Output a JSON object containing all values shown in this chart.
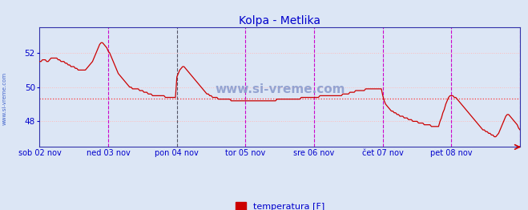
{
  "title": "Kolpa - Metlika",
  "title_color": "#0000cc",
  "bg_color": "#dce6f5",
  "plot_bg_color": "#dce6f5",
  "line_color": "#cc0000",
  "grid_color_h": "#ffbbbb",
  "grid_color_v": "#aabbdd",
  "avg_line_color": "#ff3333",
  "avg_line_value": 49.35,
  "ylabel_text": "www.si-vreme.com",
  "ylabel_color": "#4466cc",
  "yticks": [
    48,
    50,
    52
  ],
  "ymin": 46.5,
  "ymax": 53.5,
  "border_color": "#3333aa",
  "xtick_labels": [
    "sob 02 nov",
    "ned 03 nov",
    "pon 04 nov",
    "tor 05 nov",
    "sre 06 nov",
    "čet 07 nov",
    "pet 08 nov"
  ],
  "xtick_positions": [
    0,
    48,
    96,
    144,
    192,
    240,
    288
  ],
  "total_points": 337,
  "vline_black_positions": [
    96
  ],
  "vline_magenta_positions": [
    48,
    144,
    192,
    240,
    288,
    336
  ],
  "legend_label": "temperatura [F]",
  "legend_color": "#cc0000",
  "watermark_text": "www.si-vreme.com",
  "watermark_color": "#8899cc",
  "temperature_data": [
    51.5,
    51.5,
    51.6,
    51.6,
    51.6,
    51.5,
    51.5,
    51.6,
    51.7,
    51.7,
    51.7,
    51.7,
    51.7,
    51.6,
    51.6,
    51.5,
    51.5,
    51.5,
    51.4,
    51.4,
    51.3,
    51.3,
    51.2,
    51.2,
    51.2,
    51.1,
    51.1,
    51.0,
    51.0,
    51.0,
    51.0,
    51.0,
    51.0,
    51.1,
    51.2,
    51.3,
    51.4,
    51.5,
    51.7,
    51.9,
    52.1,
    52.3,
    52.5,
    52.6,
    52.6,
    52.5,
    52.4,
    52.3,
    52.1,
    52.0,
    51.8,
    51.6,
    51.4,
    51.2,
    51.0,
    50.8,
    50.7,
    50.6,
    50.5,
    50.4,
    50.3,
    50.2,
    50.1,
    50.0,
    50.0,
    49.9,
    49.9,
    49.9,
    49.9,
    49.9,
    49.8,
    49.8,
    49.8,
    49.7,
    49.7,
    49.7,
    49.6,
    49.6,
    49.6,
    49.5,
    49.5,
    49.5,
    49.5,
    49.5,
    49.5,
    49.5,
    49.5,
    49.5,
    49.4,
    49.4,
    49.4,
    49.4,
    49.4,
    49.4,
    49.4,
    49.4,
    50.6,
    50.8,
    51.0,
    51.1,
    51.2,
    51.2,
    51.1,
    51.0,
    50.9,
    50.8,
    50.7,
    50.6,
    50.5,
    50.4,
    50.3,
    50.2,
    50.1,
    50.0,
    49.9,
    49.8,
    49.7,
    49.6,
    49.6,
    49.5,
    49.5,
    49.4,
    49.4,
    49.4,
    49.4,
    49.3,
    49.3,
    49.3,
    49.3,
    49.3,
    49.3,
    49.3,
    49.3,
    49.3,
    49.2,
    49.2,
    49.2,
    49.2,
    49.2,
    49.2,
    49.2,
    49.2,
    49.2,
    49.2,
    49.2,
    49.2,
    49.2,
    49.2,
    49.2,
    49.2,
    49.2,
    49.2,
    49.2,
    49.2,
    49.2,
    49.2,
    49.2,
    49.2,
    49.2,
    49.2,
    49.2,
    49.2,
    49.2,
    49.2,
    49.2,
    49.2,
    49.3,
    49.3,
    49.3,
    49.3,
    49.3,
    49.3,
    49.3,
    49.3,
    49.3,
    49.3,
    49.3,
    49.3,
    49.3,
    49.3,
    49.3,
    49.3,
    49.3,
    49.4,
    49.4,
    49.4,
    49.4,
    49.4,
    49.4,
    49.4,
    49.4,
    49.4,
    49.4,
    49.4,
    49.4,
    49.4,
    49.5,
    49.5,
    49.5,
    49.5,
    49.5,
    49.5,
    49.5,
    49.5,
    49.5,
    49.5,
    49.5,
    49.5,
    49.5,
    49.5,
    49.5,
    49.5,
    49.6,
    49.6,
    49.6,
    49.6,
    49.6,
    49.7,
    49.7,
    49.7,
    49.7,
    49.8,
    49.8,
    49.8,
    49.8,
    49.8,
    49.8,
    49.8,
    49.9,
    49.9,
    49.9,
    49.9,
    49.9,
    49.9,
    49.9,
    49.9,
    49.9,
    49.9,
    49.9,
    49.9,
    49.5,
    49.2,
    49.0,
    48.9,
    48.8,
    48.7,
    48.6,
    48.6,
    48.5,
    48.5,
    48.4,
    48.4,
    48.3,
    48.3,
    48.3,
    48.2,
    48.2,
    48.2,
    48.1,
    48.1,
    48.1,
    48.0,
    48.0,
    48.0,
    48.0,
    47.9,
    47.9,
    47.9,
    47.9,
    47.8,
    47.8,
    47.8,
    47.8,
    47.8,
    47.7,
    47.7,
    47.7,
    47.7,
    47.7,
    47.7,
    48.0,
    48.2,
    48.5,
    48.7,
    49.0,
    49.2,
    49.4,
    49.5,
    49.5,
    49.5,
    49.4,
    49.4,
    49.3,
    49.2,
    49.1,
    49.0,
    48.9,
    48.8,
    48.7,
    48.6,
    48.5,
    48.4,
    48.3,
    48.2,
    48.1,
    48.0,
    47.9,
    47.8,
    47.7,
    47.6,
    47.5,
    47.5,
    47.4,
    47.4,
    47.3,
    47.3,
    47.2,
    47.2,
    47.1,
    47.1,
    47.2,
    47.3,
    47.5,
    47.7,
    47.9,
    48.1,
    48.3,
    48.4,
    48.4,
    48.3,
    48.2,
    48.1,
    48.0,
    47.9,
    47.8,
    47.6,
    47.5
  ]
}
